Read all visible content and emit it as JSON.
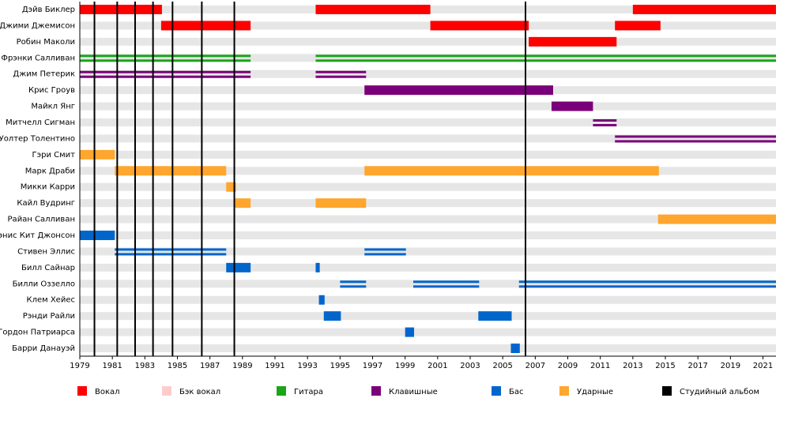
{
  "chart_data": {
    "type": "timeline",
    "xlim": [
      1979,
      2021.8
    ],
    "xticks": [
      1979,
      1981,
      1983,
      1985,
      1987,
      1989,
      1991,
      1993,
      1995,
      1997,
      1999,
      2001,
      2003,
      2005,
      2007,
      2009,
      2011,
      2013,
      2015,
      2017,
      2019,
      2021
    ],
    "members": [
      {
        "name": "Дэйв Биклер",
        "periods": [
          {
            "start": 1979,
            "end": 1984.05,
            "color": "#ff0000",
            "style": "full"
          },
          {
            "start": 1993.5,
            "end": 2000.55,
            "color": "#ff0000",
            "style": "full"
          },
          {
            "start": 2013.0,
            "end": 2021.8,
            "color": "#ff0000",
            "style": "full"
          }
        ]
      },
      {
        "name": "Джими Джемисон",
        "periods": [
          {
            "start": 1984.0,
            "end": 1989.5,
            "color": "#ff0000",
            "style": "full"
          },
          {
            "start": 2000.55,
            "end": 2006.6,
            "color": "#ff0000",
            "style": "full"
          },
          {
            "start": 2011.9,
            "end": 2014.7,
            "color": "#ff0000",
            "style": "full"
          }
        ]
      },
      {
        "name": "Робин Маколи",
        "periods": [
          {
            "start": 2006.6,
            "end": 2012.0,
            "color": "#ff0000",
            "style": "full"
          }
        ]
      },
      {
        "name": "Фрэнки Салливан",
        "periods": [
          {
            "start": 1979,
            "end": 1989.5,
            "color": "#1aa51a",
            "style": "double"
          },
          {
            "start": 1993.5,
            "end": 2021.8,
            "color": "#1aa51a",
            "style": "double"
          }
        ]
      },
      {
        "name": "Джим Петерик",
        "periods": [
          {
            "start": 1979,
            "end": 1989.5,
            "color": "#7a007a",
            "style": "double"
          },
          {
            "start": 1993.5,
            "end": 1996.6,
            "color": "#7a007a",
            "style": "double"
          }
        ]
      },
      {
        "name": "Крис Гроув",
        "periods": [
          {
            "start": 1996.5,
            "end": 2008.1,
            "color": "#7a007a",
            "style": "full"
          }
        ]
      },
      {
        "name": "Майкл Янг",
        "periods": [
          {
            "start": 2008.0,
            "end": 2010.55,
            "color": "#7a007a",
            "style": "full"
          }
        ]
      },
      {
        "name": "Митчелл Сигман",
        "periods": [
          {
            "start": 2010.55,
            "end": 2012.0,
            "color": "#7a007a",
            "style": "double"
          }
        ]
      },
      {
        "name": "Уолтер Толентино",
        "periods": [
          {
            "start": 2011.9,
            "end": 2021.8,
            "color": "#7a007a",
            "style": "double"
          }
        ]
      },
      {
        "name": "Гэри Смит",
        "periods": [
          {
            "start": 1979,
            "end": 1981.15,
            "color": "#ffa62f",
            "style": "full"
          }
        ]
      },
      {
        "name": "Марк Драби",
        "periods": [
          {
            "start": 1981.15,
            "end": 1988.0,
            "color": "#ffa62f",
            "style": "full"
          },
          {
            "start": 1996.5,
            "end": 2014.6,
            "color": "#ffa62f",
            "style": "full"
          }
        ]
      },
      {
        "name": "Микки Карри",
        "periods": [
          {
            "start": 1988.0,
            "end": 1988.6,
            "color": "#ffa62f",
            "style": "full"
          }
        ]
      },
      {
        "name": "Кайл Вудринг",
        "periods": [
          {
            "start": 1988.55,
            "end": 1989.5,
            "color": "#ffa62f",
            "style": "full"
          },
          {
            "start": 1993.5,
            "end": 1996.6,
            "color": "#ffa62f",
            "style": "full"
          }
        ]
      },
      {
        "name": "Райан Салливан",
        "periods": [
          {
            "start": 2014.55,
            "end": 2021.8,
            "color": "#ffa62f",
            "style": "full"
          }
        ]
      },
      {
        "name": "Дэнис Кит Джонсон",
        "periods": [
          {
            "start": 1979,
            "end": 1981.15,
            "color": "#0066cc",
            "style": "full"
          }
        ]
      },
      {
        "name": "Стивен Эллис",
        "periods": [
          {
            "start": 1981.15,
            "end": 1988.0,
            "color": "#0066cc",
            "style": "double"
          },
          {
            "start": 1996.5,
            "end": 1999.05,
            "color": "#0066cc",
            "style": "double"
          }
        ]
      },
      {
        "name": "Билл Сайнар",
        "periods": [
          {
            "start": 1988.0,
            "end": 1989.5,
            "color": "#0066cc",
            "style": "full"
          },
          {
            "start": 1993.5,
            "end": 1993.75,
            "color": "#0066cc",
            "style": "full"
          }
        ]
      },
      {
        "name": "Билли Оззелло",
        "periods": [
          {
            "start": 1995.0,
            "end": 1996.6,
            "color": "#0066cc",
            "style": "double"
          },
          {
            "start": 1999.5,
            "end": 2003.55,
            "color": "#0066cc",
            "style": "double"
          },
          {
            "start": 2006.0,
            "end": 2021.8,
            "color": "#0066cc",
            "style": "double"
          }
        ]
      },
      {
        "name": "Клем Хейес",
        "periods": [
          {
            "start": 1993.7,
            "end": 1994.05,
            "color": "#0066cc",
            "style": "full"
          }
        ]
      },
      {
        "name": "Рэнди Райли",
        "periods": [
          {
            "start": 1994.0,
            "end": 1995.05,
            "color": "#0066cc",
            "style": "full"
          },
          {
            "start": 2003.5,
            "end": 2005.55,
            "color": "#0066cc",
            "style": "full"
          }
        ]
      },
      {
        "name": "Гордон Патриарса",
        "periods": [
          {
            "start": 1999.0,
            "end": 1999.55,
            "color": "#0066cc",
            "style": "full"
          }
        ]
      },
      {
        "name": "Барри Данауэй",
        "periods": [
          {
            "start": 2005.5,
            "end": 2006.05,
            "color": "#0066cc",
            "style": "full"
          }
        ]
      }
    ],
    "albums": {
      "name": "Студийный альбом",
      "color": "#000000",
      "values": [
        1979.9,
        1981.3,
        1982.4,
        1983.5,
        1984.7,
        1986.5,
        1988.5,
        2006.4
      ]
    },
    "legend": [
      {
        "name": "Вокал",
        "color": "#ff0000"
      },
      {
        "name": "Бэк вокал",
        "color": "#ffcccc"
      },
      {
        "name": "Гитара",
        "color": "#1aa51a"
      },
      {
        "name": "Клавишные",
        "color": "#7a007a"
      },
      {
        "name": "Бас",
        "color": "#0066cc"
      },
      {
        "name": "Ударные",
        "color": "#ffa62f"
      }
    ]
  }
}
